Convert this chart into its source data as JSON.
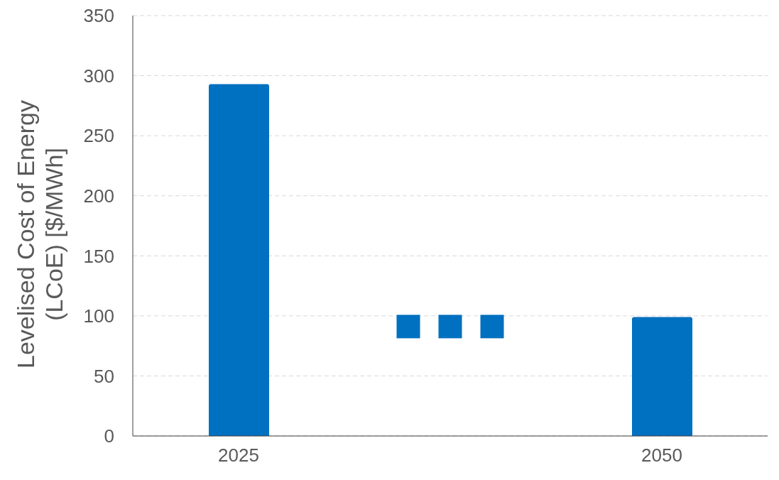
{
  "chart_data": {
    "type": "bar",
    "ylabel": "Levelised Cost of Energy (LCoE) [$/MWh]",
    "categories": [
      "2025",
      null,
      "2050"
    ],
    "values": [
      293,
      null,
      99
    ],
    "color": "#0070c0",
    "ylim": [
      0,
      350
    ],
    "yticks": [
      0,
      50,
      100,
      150,
      200,
      250,
      300,
      350
    ],
    "grid": "y"
  }
}
